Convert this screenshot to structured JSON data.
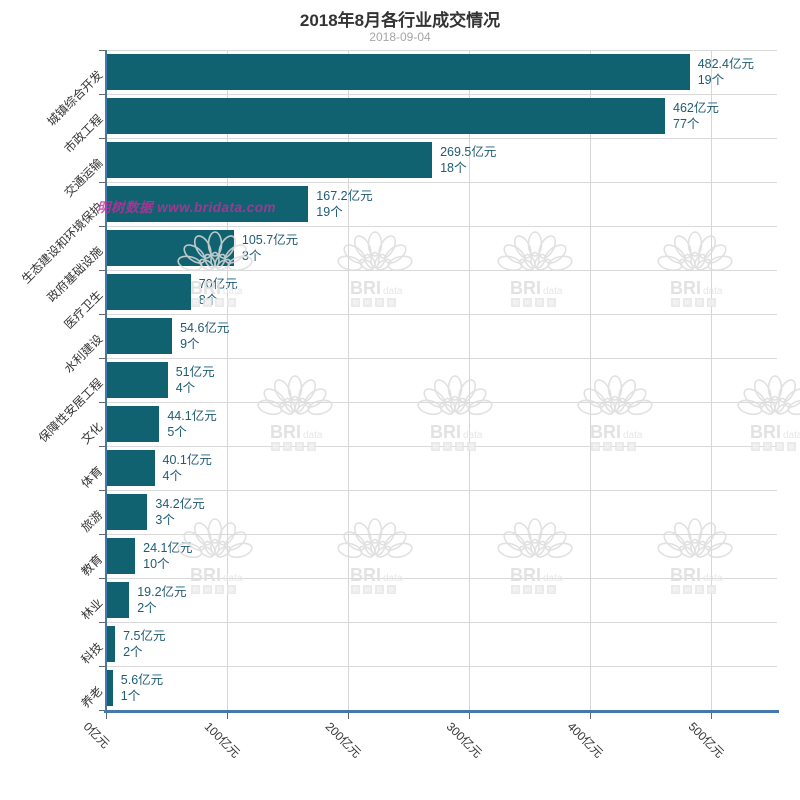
{
  "title": "2018年8月各行业成交情况",
  "subtitle": "2018-09-04",
  "watermark": {
    "banner_text": "明树数据 www.bridata.com",
    "brand_bold": "BRI",
    "brand_light": "data",
    "brand_squares": [
      "明",
      "树",
      "数",
      "据"
    ]
  },
  "axis": {
    "unit_value": "亿元",
    "unit_count": "个",
    "x_tick_labels": [
      "0亿元",
      "100亿元",
      "200亿元",
      "300亿元",
      "400亿元",
      "500亿元"
    ],
    "x_tick_values": [
      0,
      100,
      200,
      300,
      400,
      500
    ]
  },
  "colors": {
    "bar": "#106270",
    "value_label": "#1e5b74",
    "axis_line": "#4579ad",
    "grid": "#d6d6d6",
    "title": "#333333",
    "subtitle": "#a6a6a6",
    "watermark_gray": "#dcdcdc",
    "watermark_pink": "#c92c9d"
  },
  "chart_data": {
    "type": "bar",
    "orientation": "horizontal",
    "title": "2018年8月各行业成交情况",
    "subtitle": "2018-09-04",
    "categories": [
      "城镇综合开发",
      "市政工程",
      "交通运输",
      "生态建设和环境保护",
      "政府基础设施",
      "医疗卫生",
      "水利建设",
      "保障性安居工程",
      "文化",
      "体育",
      "旅游",
      "教育",
      "林业",
      "科技",
      "养老"
    ],
    "series": [
      {
        "name": "amount",
        "unit": "亿元",
        "values": [
          482.4,
          462,
          269.5,
          167.2,
          105.7,
          70,
          54.6,
          51,
          44.1,
          40.1,
          34.2,
          24.1,
          19.2,
          7.5,
          5.6
        ]
      },
      {
        "name": "count",
        "unit": "个",
        "values": [
          19,
          77,
          18,
          19,
          3,
          8,
          9,
          4,
          5,
          4,
          3,
          10,
          2,
          2,
          1
        ]
      }
    ],
    "xlim": [
      0,
      500
    ],
    "grid": true,
    "legend": false
  }
}
